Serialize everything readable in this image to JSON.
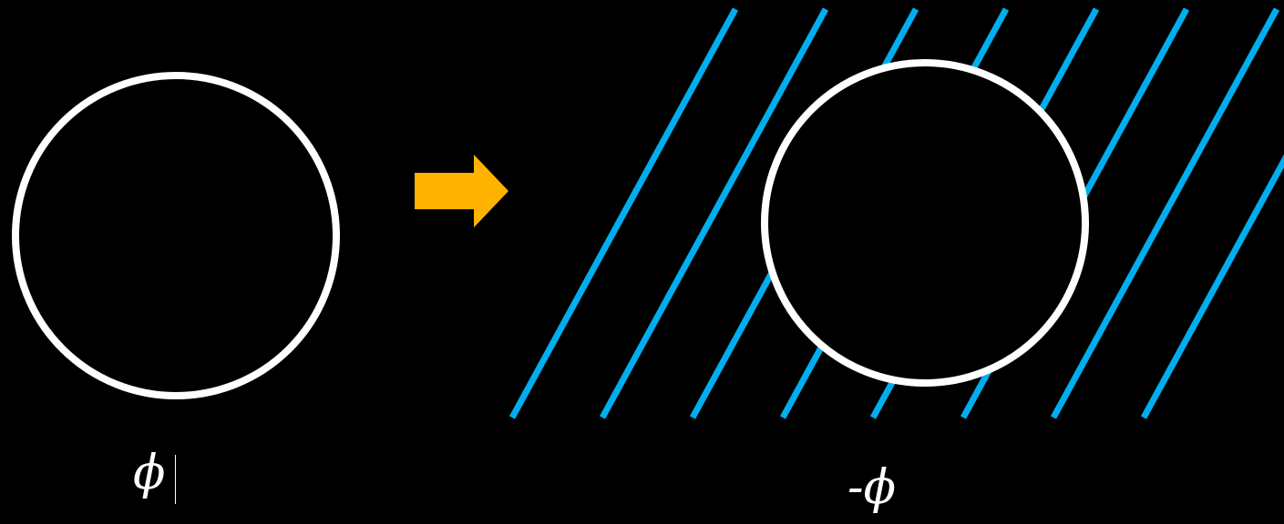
{
  "colors": {
    "background": "#000000",
    "circle_stroke": "#ffffff",
    "hatch_lines": "#00aeef",
    "arrow": "#ffb300",
    "text": "#ffffff"
  },
  "left_panel": {
    "label": "ϕ",
    "shape": "circle-outline"
  },
  "arrow": {
    "direction": "right",
    "icon": "right-arrow-icon"
  },
  "right_panel": {
    "label": "-ϕ",
    "shape": "circle-outline-on-hatched-region",
    "hatch_line_count": 8
  }
}
